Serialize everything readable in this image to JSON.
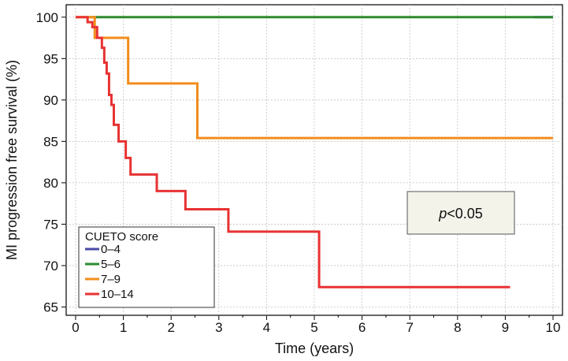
{
  "chart_data": {
    "type": "line",
    "xlabel": "Time (years)",
    "ylabel": "MI progression free survival (%)",
    "xlim": [
      0,
      10
    ],
    "ylim": [
      64,
      101.5
    ],
    "x_ticks": [
      "0",
      "1",
      "2",
      "3",
      "4",
      "5",
      "6",
      "7",
      "8",
      "9",
      "10"
    ],
    "y_ticks": [
      "65",
      "70",
      "75",
      "80",
      "85",
      "90",
      "95",
      "100"
    ],
    "grid": true,
    "legend": {
      "title": "CUETO score",
      "position": "bottom-left"
    },
    "annotation": {
      "italic": "p",
      "text": "<0.05"
    },
    "series": [
      {
        "name": "0–4",
        "color": "#4a4aa6",
        "x": [
          9.6,
          10
        ],
        "y": [
          100,
          100
        ]
      },
      {
        "name": "5–6",
        "color": "#2f8a2f",
        "x": [
          0.3,
          10
        ],
        "y": [
          100,
          100
        ]
      },
      {
        "name": "7–9",
        "color": "#f28c1c",
        "x": [
          0,
          0.35,
          0.4,
          1.0,
          1.1,
          2.45,
          2.55,
          10
        ],
        "y": [
          100,
          100,
          97.5,
          97.5,
          92,
          92,
          85.4,
          85.4
        ]
      },
      {
        "name": "10–14",
        "color": "#e83232",
        "x": [
          0,
          0.25,
          0.35,
          0.45,
          0.55,
          0.6,
          0.65,
          0.7,
          0.75,
          0.8,
          0.9,
          1.0,
          1.05,
          1.15,
          1.3,
          1.7,
          2.3,
          2.45,
          3.2,
          4.2,
          5.1,
          9.1
        ],
        "y": [
          100,
          99.4,
          98.8,
          97.5,
          96.3,
          94.5,
          93.2,
          90.6,
          89.4,
          87.0,
          85.0,
          85.0,
          83.0,
          81.0,
          81.0,
          79.0,
          76.8,
          76.8,
          74.1,
          74.1,
          67.4,
          67.4
        ]
      }
    ]
  }
}
